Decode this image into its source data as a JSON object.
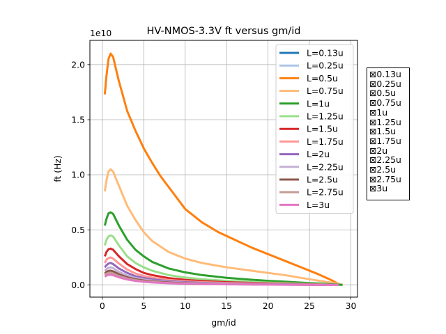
{
  "chart_data": {
    "type": "line",
    "title": "HV-NMOS-3.3V ft versus gm/id",
    "xlabel": "gm/id",
    "ylabel": "ft (Hz)",
    "y_scale_label": "1e10",
    "xlim": [
      -1.5,
      30.8
    ],
    "ylim": [
      -1100000000.0,
      22200000000.0
    ],
    "xticks": [
      0,
      5,
      10,
      15,
      20,
      25,
      30
    ],
    "yticks": [
      0.0,
      0.5,
      1.0,
      1.5,
      2.0
    ],
    "ytick_labels": [
      "0.0",
      "0.5",
      "1.0",
      "1.5",
      "2.0"
    ],
    "grid": true,
    "legend_position": "top-right",
    "series": [
      {
        "name": "L=0.13u",
        "color": "#1f77b4",
        "points": []
      },
      {
        "name": "L=0.25u",
        "color": "#aec7e8",
        "points": []
      },
      {
        "name": "L=0.5u",
        "color": "#ff7f0e",
        "points": [
          [
            0.3,
            17300000000.0
          ],
          [
            0.5,
            19000000000.0
          ],
          [
            0.75,
            20500000000.0
          ],
          [
            1.0,
            21000000000.0
          ],
          [
            1.3,
            20700000000.0
          ],
          [
            2,
            18500000000.0
          ],
          [
            3,
            15800000000.0
          ],
          [
            4,
            14000000000.0
          ],
          [
            5,
            12400000000.0
          ],
          [
            6,
            11100000000.0
          ],
          [
            7,
            9900000000.0
          ],
          [
            8,
            8900000000.0
          ],
          [
            10,
            6900000000.0
          ],
          [
            12,
            5700000000.0
          ],
          [
            14,
            4800000000.0
          ],
          [
            16,
            4100000000.0
          ],
          [
            18,
            3400000000.0
          ],
          [
            20,
            2800000000.0
          ],
          [
            22,
            2200000000.0
          ],
          [
            24,
            1600000000.0
          ],
          [
            26,
            1000000000.0
          ],
          [
            27.5,
            500000000.0
          ],
          [
            28.5,
            100000000.0
          ]
        ]
      },
      {
        "name": "L=0.75u",
        "color": "#ffbb78",
        "points": [
          [
            0.3,
            8500000000.0
          ],
          [
            0.5,
            9500000000.0
          ],
          [
            0.75,
            10300000000.0
          ],
          [
            1.0,
            10500000000.0
          ],
          [
            1.3,
            10300000000.0
          ],
          [
            2,
            9000000000.0
          ],
          [
            3,
            7200000000.0
          ],
          [
            4,
            5900000000.0
          ],
          [
            5,
            4800000000.0
          ],
          [
            6,
            4000000000.0
          ],
          [
            8,
            3000000000.0
          ],
          [
            10,
            2400000000.0
          ],
          [
            12,
            2000000000.0
          ],
          [
            15,
            1600000000.0
          ],
          [
            18,
            1300000000.0
          ],
          [
            20,
            1100000000.0
          ],
          [
            22,
            900000000.0
          ],
          [
            24,
            650000000.0
          ],
          [
            26,
            400000000.0
          ],
          [
            28,
            180000000.0
          ],
          [
            29,
            20000000.0
          ]
        ]
      },
      {
        "name": "L=1u",
        "color": "#2ca02c",
        "points": [
          [
            0.3,
            5400000000.0
          ],
          [
            0.5,
            6000000000.0
          ],
          [
            0.75,
            6500000000.0
          ],
          [
            1.0,
            6600000000.0
          ],
          [
            1.3,
            6450000000.0
          ],
          [
            2,
            5400000000.0
          ],
          [
            3,
            4100000000.0
          ],
          [
            4,
            3200000000.0
          ],
          [
            5,
            2600000000.0
          ],
          [
            6,
            2100000000.0
          ],
          [
            8,
            1500000000.0
          ],
          [
            10,
            1150000000.0
          ],
          [
            12,
            900000000.0
          ],
          [
            15,
            650000000.0
          ],
          [
            18,
            480000000.0
          ],
          [
            20,
            380000000.0
          ],
          [
            22,
            300000000.0
          ],
          [
            25,
            180000000.0
          ],
          [
            28,
            60000000.0
          ],
          [
            29,
            10000000.0
          ]
        ]
      },
      {
        "name": "L=1.25u",
        "color": "#98df8a",
        "points": [
          [
            0.3,
            3600000000.0
          ],
          [
            0.5,
            4100000000.0
          ],
          [
            0.75,
            4400000000.0
          ],
          [
            1.0,
            4500000000.0
          ],
          [
            1.3,
            4400000000.0
          ],
          [
            2,
            3600000000.0
          ],
          [
            3,
            2600000000.0
          ],
          [
            4,
            2000000000.0
          ],
          [
            5,
            1600000000.0
          ],
          [
            6,
            1300000000.0
          ],
          [
            8,
            900000000.0
          ],
          [
            10,
            680000000.0
          ],
          [
            12,
            520000000.0
          ],
          [
            15,
            380000000.0
          ],
          [
            20,
            220000000.0
          ],
          [
            25,
            100000000.0
          ],
          [
            28.5,
            10000000.0
          ]
        ]
      },
      {
        "name": "L=1.5u",
        "color": "#d62728",
        "points": [
          [
            0.3,
            2600000000.0
          ],
          [
            0.5,
            3000000000.0
          ],
          [
            0.75,
            3250000000.0
          ],
          [
            1.0,
            3300000000.0
          ],
          [
            1.3,
            3200000000.0
          ],
          [
            2,
            2600000000.0
          ],
          [
            3,
            1900000000.0
          ],
          [
            4,
            1450000000.0
          ],
          [
            5,
            1100000000.0
          ],
          [
            6,
            900000000.0
          ],
          [
            8,
            630000000.0
          ],
          [
            10,
            470000000.0
          ],
          [
            12,
            360000000.0
          ],
          [
            15,
            260000000.0
          ],
          [
            20,
            150000000.0
          ],
          [
            25,
            70000000.0
          ],
          [
            28.5,
            5000000.0
          ]
        ]
      },
      {
        "name": "L=1.75u",
        "color": "#ff9896",
        "points": [
          [
            0.3,
            2000000000.0
          ],
          [
            0.5,
            2300000000.0
          ],
          [
            0.75,
            2450000000.0
          ],
          [
            1.0,
            2500000000.0
          ],
          [
            1.3,
            2400000000.0
          ],
          [
            2,
            1950000000.0
          ],
          [
            3,
            1400000000.0
          ],
          [
            4,
            1050000000.0
          ],
          [
            5,
            820000000.0
          ],
          [
            6,
            670000000.0
          ],
          [
            8,
            460000000.0
          ],
          [
            10,
            340000000.0
          ],
          [
            12,
            260000000.0
          ],
          [
            15,
            190000000.0
          ],
          [
            20,
            110000000.0
          ],
          [
            25,
            50000000.0
          ],
          [
            28.5,
            5000000.0
          ]
        ]
      },
      {
        "name": "L=2u",
        "color": "#9467bd",
        "points": [
          [
            0.3,
            1600000000.0
          ],
          [
            0.5,
            1800000000.0
          ],
          [
            0.75,
            1950000000.0
          ],
          [
            1.0,
            2000000000.0
          ],
          [
            1.3,
            1900000000.0
          ],
          [
            2,
            1500000000.0
          ],
          [
            3,
            1100000000.0
          ],
          [
            4,
            800000000.0
          ],
          [
            5,
            630000000.0
          ],
          [
            6,
            510000000.0
          ],
          [
            8,
            350000000.0
          ],
          [
            10,
            260000000.0
          ],
          [
            12,
            200000000.0
          ],
          [
            15,
            140000000.0
          ],
          [
            20,
            80000000.0
          ],
          [
            25,
            40000000.0
          ],
          [
            28.5,
            5000000.0
          ]
        ]
      },
      {
        "name": "L=2.25u",
        "color": "#c5b0d5",
        "points": [
          [
            0.3,
            1300000000.0
          ],
          [
            0.5,
            1450000000.0
          ],
          [
            0.75,
            1550000000.0
          ],
          [
            1.0,
            1600000000.0
          ],
          [
            1.3,
            1520000000.0
          ],
          [
            2,
            1200000000.0
          ],
          [
            3,
            860000000.0
          ],
          [
            4,
            640000000.0
          ],
          [
            5,
            500000000.0
          ],
          [
            6,
            400000000.0
          ],
          [
            8,
            280000000.0
          ],
          [
            10,
            200000000.0
          ],
          [
            12,
            160000000.0
          ],
          [
            15,
            110000000.0
          ],
          [
            20,
            65000000.0
          ],
          [
            25,
            30000000.0
          ],
          [
            28.5,
            5000000.0
          ]
        ]
      },
      {
        "name": "L=2.5u",
        "color": "#8c564b",
        "points": [
          [
            0.3,
            1050000000.0
          ],
          [
            0.5,
            1200000000.0
          ],
          [
            0.75,
            1280000000.0
          ],
          [
            1.0,
            1300000000.0
          ],
          [
            1.3,
            1240000000.0
          ],
          [
            2,
            980000000.0
          ],
          [
            3,
            700000000.0
          ],
          [
            4,
            520000000.0
          ],
          [
            5,
            410000000.0
          ],
          [
            6,
            330000000.0
          ],
          [
            8,
            230000000.0
          ],
          [
            10,
            170000000.0
          ],
          [
            12,
            130000000.0
          ],
          [
            15,
            90000000.0
          ],
          [
            20,
            52000000.0
          ],
          [
            25,
            25000000.0
          ],
          [
            28.5,
            5000000.0
          ]
        ]
      },
      {
        "name": "L=2.75u",
        "color": "#c49c94",
        "points": [
          [
            0.3,
            900000000.0
          ],
          [
            0.5,
            1020000000.0
          ],
          [
            0.75,
            1090000000.0
          ],
          [
            1.0,
            1100000000.0
          ],
          [
            1.3,
            1050000000.0
          ],
          [
            2,
            820000000.0
          ],
          [
            3,
            590000000.0
          ],
          [
            4,
            440000000.0
          ],
          [
            5,
            340000000.0
          ],
          [
            6,
            280000000.0
          ],
          [
            8,
            190000000.0
          ],
          [
            10,
            140000000.0
          ],
          [
            12,
            110000000.0
          ],
          [
            15,
            75000000.0
          ],
          [
            20,
            44000000.0
          ],
          [
            25,
            20000000.0
          ],
          [
            28.5,
            5000000.0
          ]
        ]
      },
      {
        "name": "L=3u",
        "color": "#e377c2",
        "points": [
          [
            0.3,
            750000000.0
          ],
          [
            0.5,
            860000000.0
          ],
          [
            0.75,
            920000000.0
          ],
          [
            1.0,
            930000000.0
          ],
          [
            1.3,
            890000000.0
          ],
          [
            2,
            700000000.0
          ],
          [
            3,
            500000000.0
          ],
          [
            4,
            370000000.0
          ],
          [
            5,
            290000000.0
          ],
          [
            6,
            230000000.0
          ],
          [
            8,
            160000000.0
          ],
          [
            10,
            120000000.0
          ],
          [
            12,
            90000000.0
          ],
          [
            15,
            63000000.0
          ],
          [
            20,
            36000000.0
          ],
          [
            23,
            20000000.0
          ],
          [
            25,
            16000000.0
          ],
          [
            28.5,
            5000000.0
          ]
        ]
      }
    ]
  },
  "side_panel": {
    "check_glyph": "⊠",
    "items": [
      "0.13u",
      "0.25u",
      "0.5u",
      "0.75u",
      "1u",
      "1.25u",
      "1.5u",
      "1.75u",
      "2u",
      "2.25u",
      "2.5u",
      "2.75u",
      "3u"
    ]
  }
}
